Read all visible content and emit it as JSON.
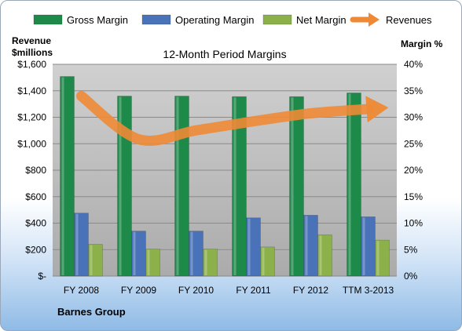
{
  "chart_data": {
    "type": "bar",
    "title": "12-Month Period Margins",
    "left_axis_label": [
      "Revenue",
      "$millions"
    ],
    "right_axis_label": "Margin %",
    "categories": [
      "FY 2008",
      "FY 2009",
      "FY 2010",
      "FY 2011",
      "FY 2012",
      "TTM 3-2013"
    ],
    "left_ylim": [
      0,
      1600
    ],
    "left_ticks": [
      0,
      200,
      400,
      600,
      800,
      1000,
      1200,
      1400,
      1600
    ],
    "left_tick_labels": [
      "$-",
      "$200",
      "$400",
      "$600",
      "$800",
      "$1,000",
      "$1,200",
      "$1,400",
      "$1,600"
    ],
    "right_ylim": [
      0,
      40
    ],
    "right_ticks": [
      0,
      5,
      10,
      15,
      20,
      25,
      30,
      35,
      40
    ],
    "right_tick_labels": [
      "0%",
      "5%",
      "10%",
      "15%",
      "20%",
      "25%",
      "30%",
      "35%",
      "40%"
    ],
    "series": [
      {
        "name": "Gross Margin",
        "kind": "bar",
        "axis": "right",
        "color": "#1e8a4a",
        "values": [
          37.7,
          34.0,
          34.0,
          33.9,
          33.9,
          34.6
        ]
      },
      {
        "name": "Operating Margin",
        "kind": "bar",
        "axis": "right",
        "color": "#4a72b8",
        "values": [
          11.9,
          8.5,
          8.5,
          11.0,
          11.5,
          11.2
        ]
      },
      {
        "name": "Net Margin",
        "kind": "bar",
        "axis": "right",
        "color": "#8cb04a",
        "values": [
          6.0,
          5.1,
          5.1,
          5.5,
          7.8,
          6.8
        ]
      },
      {
        "name": "Revenues",
        "kind": "line-arrow",
        "axis": "left",
        "color": "#ee8a35",
        "values": [
          1360,
          1034,
          1101,
          1169,
          1230,
          1262
        ]
      }
    ],
    "legend_position": "top",
    "grid": true,
    "footer_label": "Barnes Group"
  }
}
